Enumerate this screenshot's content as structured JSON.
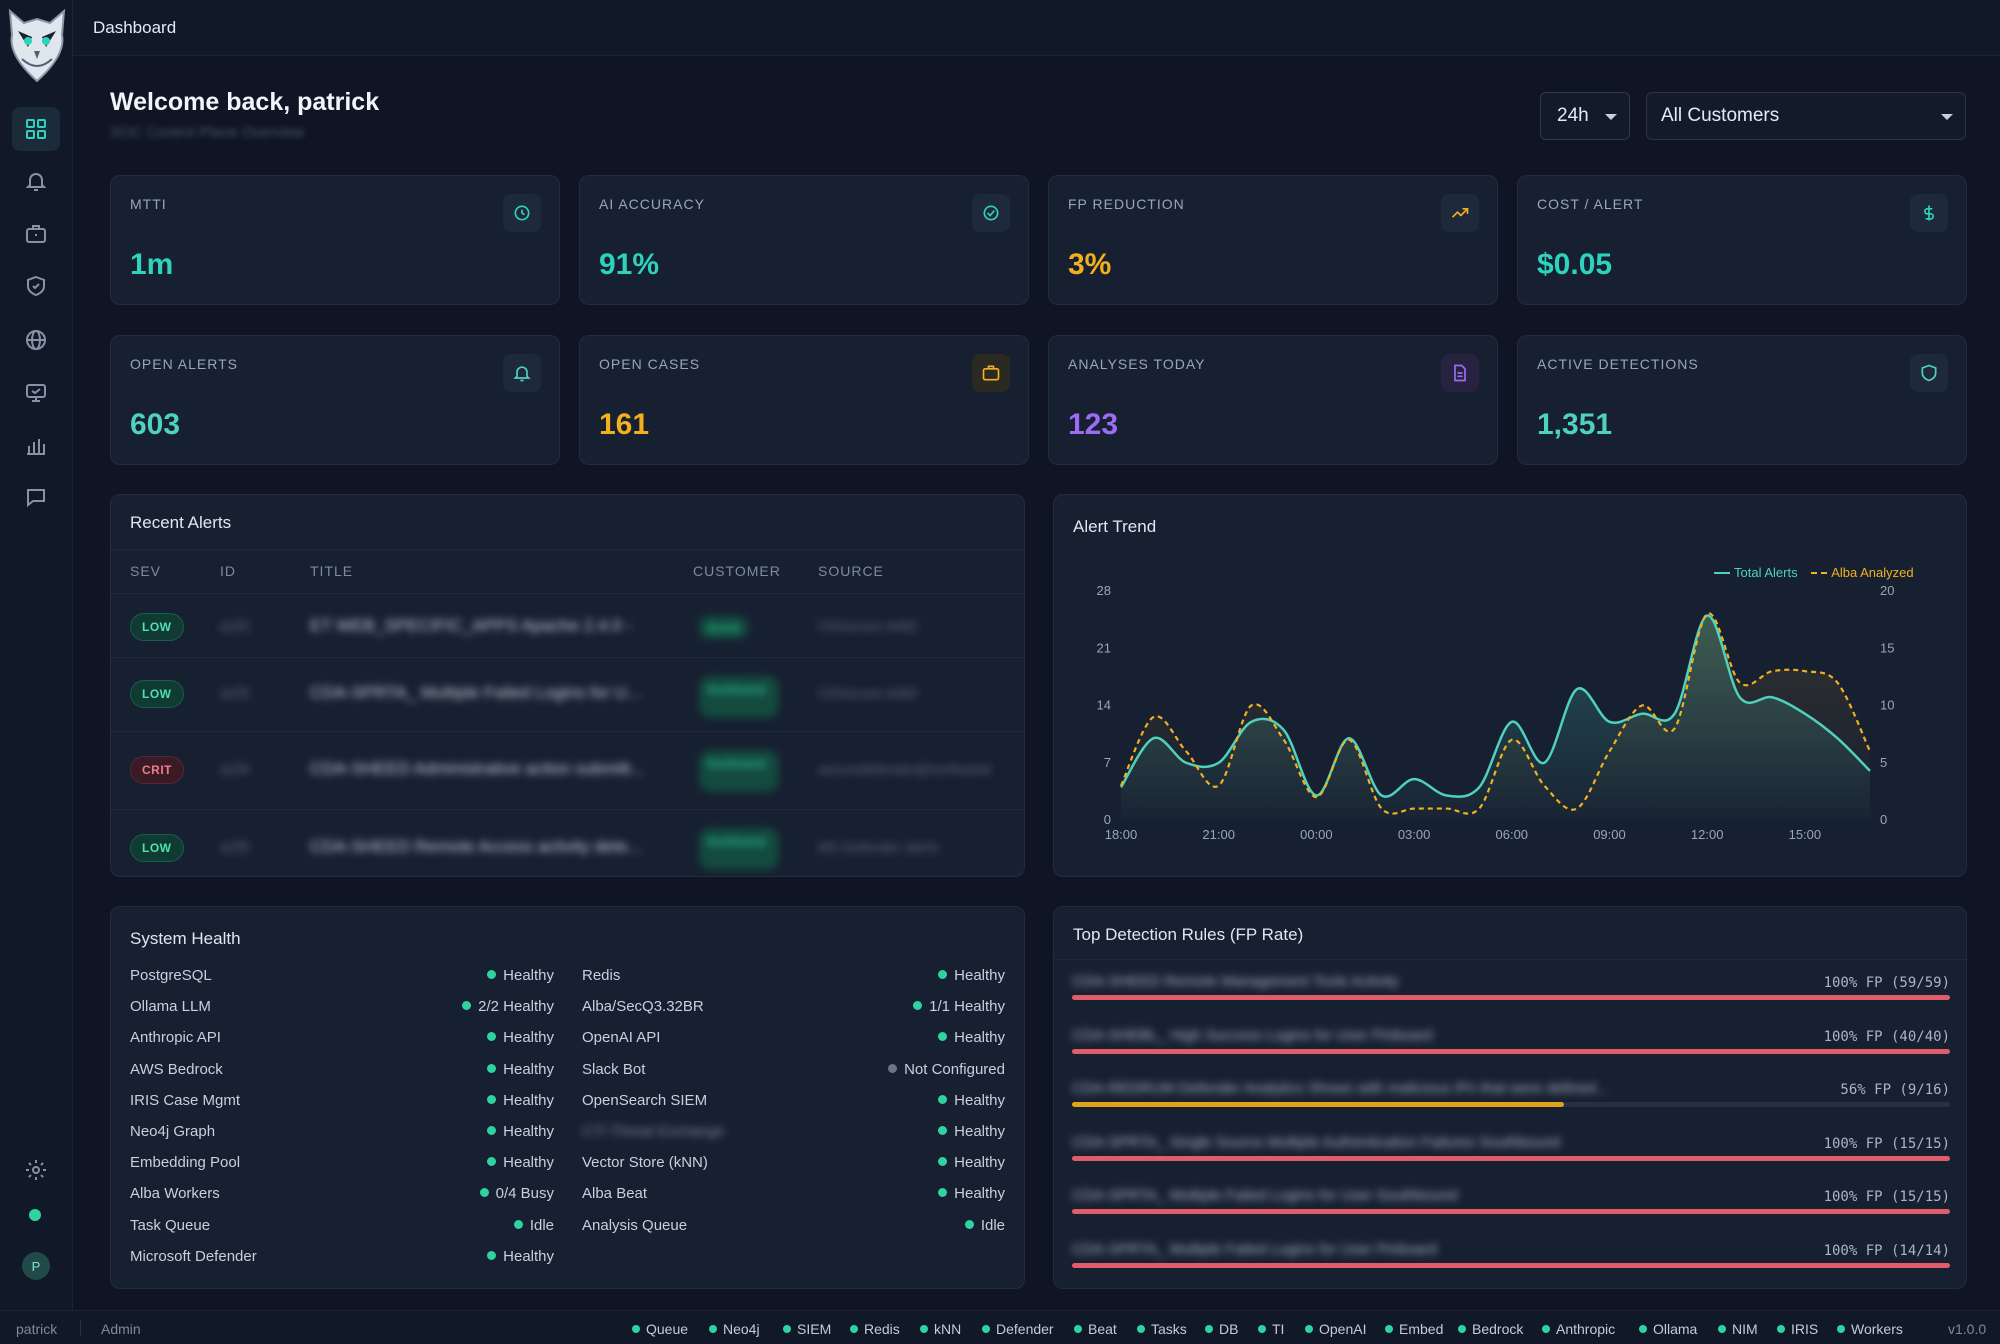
{
  "header": {
    "breadcrumb": "Dashboard"
  },
  "welcome": {
    "title": "Welcome back, patrick",
    "subtitle": "SOC Control Plane Overview"
  },
  "filters": {
    "time_range": "24h",
    "customer": "All Customers"
  },
  "stats": [
    {
      "label": "MTTI",
      "value": "1m",
      "color": "#2ed3bd",
      "icon": "clock-icon"
    },
    {
      "label": "AI ACCURACY",
      "value": "91%",
      "color": "#2ed3bd",
      "icon": "check-circle-icon"
    },
    {
      "label": "FP REDUCTION",
      "value": "3%",
      "color": "#f2b01e",
      "icon": "trending-up-icon"
    },
    {
      "label": "COST / ALERT",
      "value": "$0.05",
      "color": "#2ed3bd",
      "icon": "dollar-icon"
    },
    {
      "label": "OPEN ALERTS",
      "value": "603",
      "color": "#2ed3bd",
      "icon": "bell-icon"
    },
    {
      "label": "OPEN CASES",
      "value": "161",
      "color": "#f2b01e",
      "icon": "briefcase-icon"
    },
    {
      "label": "ANALYSES TODAY",
      "value": "123",
      "color": "#9d6cf6",
      "icon": "document-icon"
    },
    {
      "label": "ACTIVE DETECTIONS",
      "value": "1,351",
      "color": "#2ed3bd",
      "icon": "shield-icon"
    }
  ],
  "recent_alerts": {
    "title": "Recent Alerts",
    "columns": [
      "SEV",
      "ID",
      "TITLE",
      "CUSTOMER",
      "SOURCE"
    ],
    "rows": [
      {
        "sev": "LOW",
        "id": "a1f2",
        "title": "ET WEB_SPECIFIC_APPS Apache 2.4.0 -",
        "customer": "Acme",
        "source": "OSSecure 6482"
      },
      {
        "sev": "LOW",
        "id": "a1f3",
        "title": "CDA-SPRTA_ Multiple Failed Logins for U...",
        "customer": "Northwind",
        "source": "OSSecure 6480"
      },
      {
        "sev": "CRIT",
        "id": "a1f4",
        "title": "CDA-SHEED Administrative action submitt...",
        "customer": "Northwind",
        "source": "securedefender@northwind"
      },
      {
        "sev": "LOW",
        "id": "a1f5",
        "title": "CDA-SHEED Remote Access activity dete...",
        "customer": "Northwind",
        "source": "MS Defender alerts"
      }
    ]
  },
  "alert_trend": {
    "title": "Alert Trend"
  },
  "chart_data": {
    "type": "line",
    "title": "Alert Trend",
    "x": [
      "18:00",
      "19:00",
      "20:00",
      "21:00",
      "22:00",
      "23:00",
      "00:00",
      "01:00",
      "02:00",
      "03:00",
      "04:00",
      "05:00",
      "06:00",
      "07:00",
      "08:00",
      "09:00",
      "10:00",
      "11:00",
      "12:00",
      "13:00",
      "14:00",
      "15:00",
      "16:00",
      "17:00"
    ],
    "xticks": [
      "18:00",
      "21:00",
      "00:00",
      "03:00",
      "06:00",
      "09:00",
      "12:00",
      "15:00"
    ],
    "series": [
      {
        "name": "Total Alerts",
        "axis": "left",
        "color": "#4fd1bf",
        "values": [
          4,
          10,
          7,
          7,
          12,
          11,
          3,
          10,
          3,
          5,
          3,
          4,
          12,
          7,
          16,
          12,
          13,
          13,
          25,
          15,
          15,
          13,
          10,
          6
        ]
      },
      {
        "name": "Alba Analyzed",
        "axis": "right",
        "color": "#f2b01e",
        "values": [
          3,
          9,
          6,
          3,
          10,
          7,
          2,
          7,
          1,
          1,
          1,
          1,
          7,
          3,
          1,
          6,
          10,
          8,
          18,
          12,
          13,
          13,
          12,
          6
        ]
      }
    ],
    "y_left": {
      "ticks": [
        0,
        7,
        14,
        21,
        28
      ],
      "range": [
        0,
        28
      ]
    },
    "y_right": {
      "ticks": [
        0,
        5,
        10,
        15,
        20
      ],
      "range": [
        0,
        20
      ]
    },
    "legend": "top-right"
  },
  "system_health": {
    "title": "System Health",
    "left": [
      {
        "name": "PostgreSQL",
        "status": "Healthy",
        "color": "#2ed3a0"
      },
      {
        "name": "Ollama LLM",
        "status": "2/2 Healthy",
        "color": "#2ed3a0"
      },
      {
        "name": "Anthropic API",
        "status": "Healthy",
        "color": "#2ed3a0"
      },
      {
        "name": "AWS Bedrock",
        "status": "Healthy",
        "color": "#2ed3a0"
      },
      {
        "name": "IRIS Case Mgmt",
        "status": "Healthy",
        "color": "#2ed3a0"
      },
      {
        "name": "Neo4j Graph",
        "status": "Healthy",
        "color": "#2ed3a0"
      },
      {
        "name": "Embedding Pool",
        "status": "Healthy",
        "color": "#2ed3a0"
      },
      {
        "name": "Alba Workers",
        "status": "0/4 Busy",
        "color": "#2ed3a0"
      },
      {
        "name": "Task Queue",
        "status": "Idle",
        "color": "#2ed3a0"
      },
      {
        "name": "Microsoft Defender",
        "status": "Healthy",
        "color": "#2ed3a0"
      }
    ],
    "right": [
      {
        "name": "Redis",
        "status": "Healthy",
        "color": "#2ed3a0"
      },
      {
        "name": "Alba/SecQ3.32BR",
        "status": "1/1 Healthy",
        "color": "#2ed3a0"
      },
      {
        "name": "OpenAI API",
        "status": "Healthy",
        "color": "#2ed3a0"
      },
      {
        "name": "Slack Bot",
        "status": "Not Configured",
        "color": "#6b7585"
      },
      {
        "name": "OpenSearch SIEM",
        "status": "Healthy",
        "color": "#2ed3a0"
      },
      {
        "name": "CTI Threat Exchange",
        "status": "Healthy",
        "color": "#2ed3a0",
        "blurred": true
      },
      {
        "name": "Vector Store (kNN)",
        "status": "Healthy",
        "color": "#2ed3a0"
      },
      {
        "name": "Alba Beat",
        "status": "Healthy",
        "color": "#2ed3a0"
      },
      {
        "name": "Analysis Queue",
        "status": "Idle",
        "color": "#2ed3a0"
      }
    ]
  },
  "top_rules": {
    "title": "Top Detection Rules (FP Rate)",
    "rows": [
      {
        "name": "CDA-SHEED Remote Management Tools Activity",
        "fp_label": "100% FP (59/59)",
        "fraction": 1.0,
        "color": "#e15b6b"
      },
      {
        "name": "CDA-SHEBL_ High Success Logins for User Pinboard",
        "fp_label": "100% FP (40/40)",
        "fraction": 1.0,
        "color": "#e15b6b"
      },
      {
        "name": "CDA-REDRUM Defender Analytics Shows with malicious IPs that were defined...",
        "fp_label": "56% FP (9/16)",
        "fraction": 0.56,
        "color": "#e0a418"
      },
      {
        "name": "CDA-SPRTA_ Single Source Multiple Authentication Failures Southbound",
        "fp_label": "100% FP (15/15)",
        "fraction": 1.0,
        "color": "#e15b6b"
      },
      {
        "name": "CDA-SPRTA_ Multiple Failed Logins for User Southbound",
        "fp_label": "100% FP (15/15)",
        "fraction": 1.0,
        "color": "#e15b6b"
      },
      {
        "name": "CDA-SPRTA_ Multiple Failed Logins for User Pinboard",
        "fp_label": "100% FP (14/14)",
        "fraction": 1.0,
        "color": "#e15b6b"
      }
    ]
  },
  "footer": {
    "user": "patrick",
    "role": "Admin",
    "version": "v1.0.0",
    "services": [
      "Queue",
      "Neo4j",
      "SIEM",
      "Redis",
      "kNN",
      "Defender",
      "Beat",
      "Tasks",
      "DB",
      "TI",
      "OpenAI",
      "Embed",
      "Bedrock",
      "Anthropic",
      "Ollama",
      "NIM",
      "IRIS",
      "Workers"
    ]
  },
  "sidebar": {
    "items": [
      "dashboard-icon",
      "bell-icon",
      "briefcase-icon",
      "shield-icon",
      "globe-icon",
      "monitor-icon",
      "bar-chart-icon",
      "chat-icon"
    ],
    "avatar": "P"
  }
}
